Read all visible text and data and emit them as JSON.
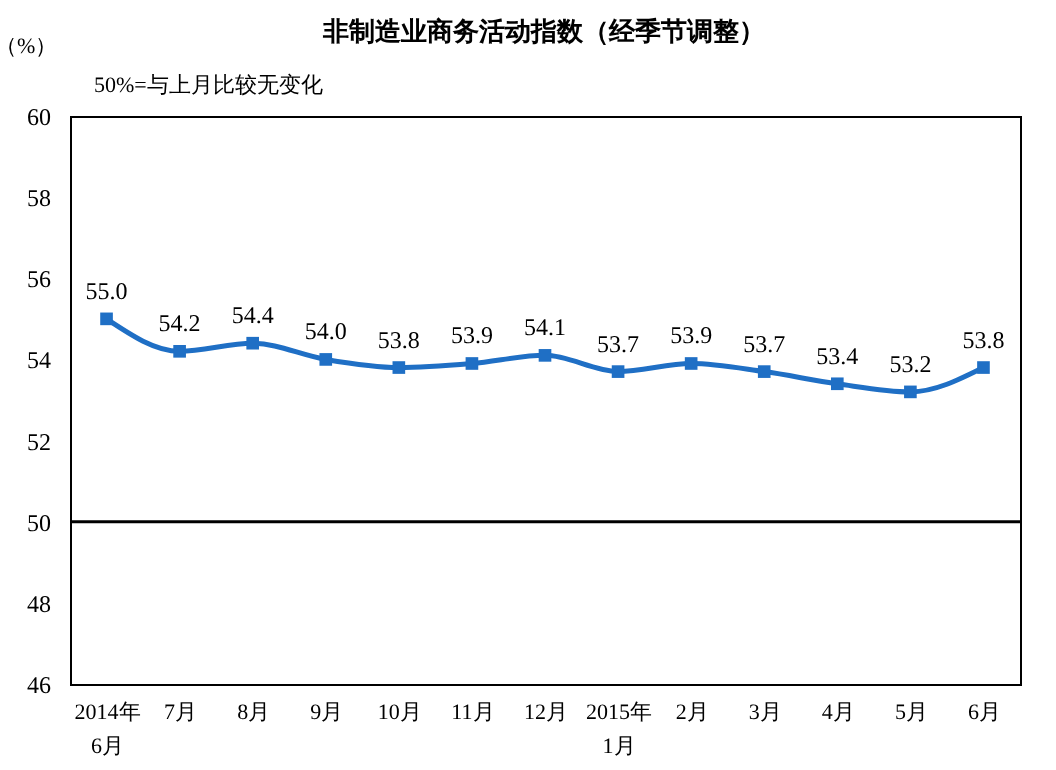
{
  "chart_data": {
    "type": "line",
    "title": "非制造业商务活动指数（经季节调整）",
    "ylabel": "（%）",
    "annotations": [
      "50%=与上月比较无变化"
    ],
    "categories": [
      "2014年\n6月",
      "7月",
      "8月",
      "9月",
      "10月",
      "11月",
      "12月",
      "2015年\n1月",
      "2月",
      "3月",
      "4月",
      "5月",
      "6月"
    ],
    "series": [
      {
        "color": "#1f6fc5",
        "values": [
          55.0,
          54.2,
          54.4,
          54.0,
          53.8,
          53.9,
          54.1,
          53.7,
          53.9,
          53.7,
          53.4,
          53.2,
          53.8
        ]
      }
    ],
    "ylim": [
      46,
      60
    ],
    "yticks": [
      46,
      48,
      50,
      52,
      54,
      56,
      58,
      60
    ],
    "ref_lines": [
      {
        "axis": "y",
        "value": 50,
        "color": "#000000"
      }
    ],
    "value_labels": [
      "55.0",
      "54.2",
      "54.4",
      "54.0",
      "53.8",
      "53.9",
      "54.1",
      "53.7",
      "53.9",
      "53.7",
      "53.4",
      "53.2",
      "53.8"
    ],
    "marker": "square",
    "grid": false
  }
}
